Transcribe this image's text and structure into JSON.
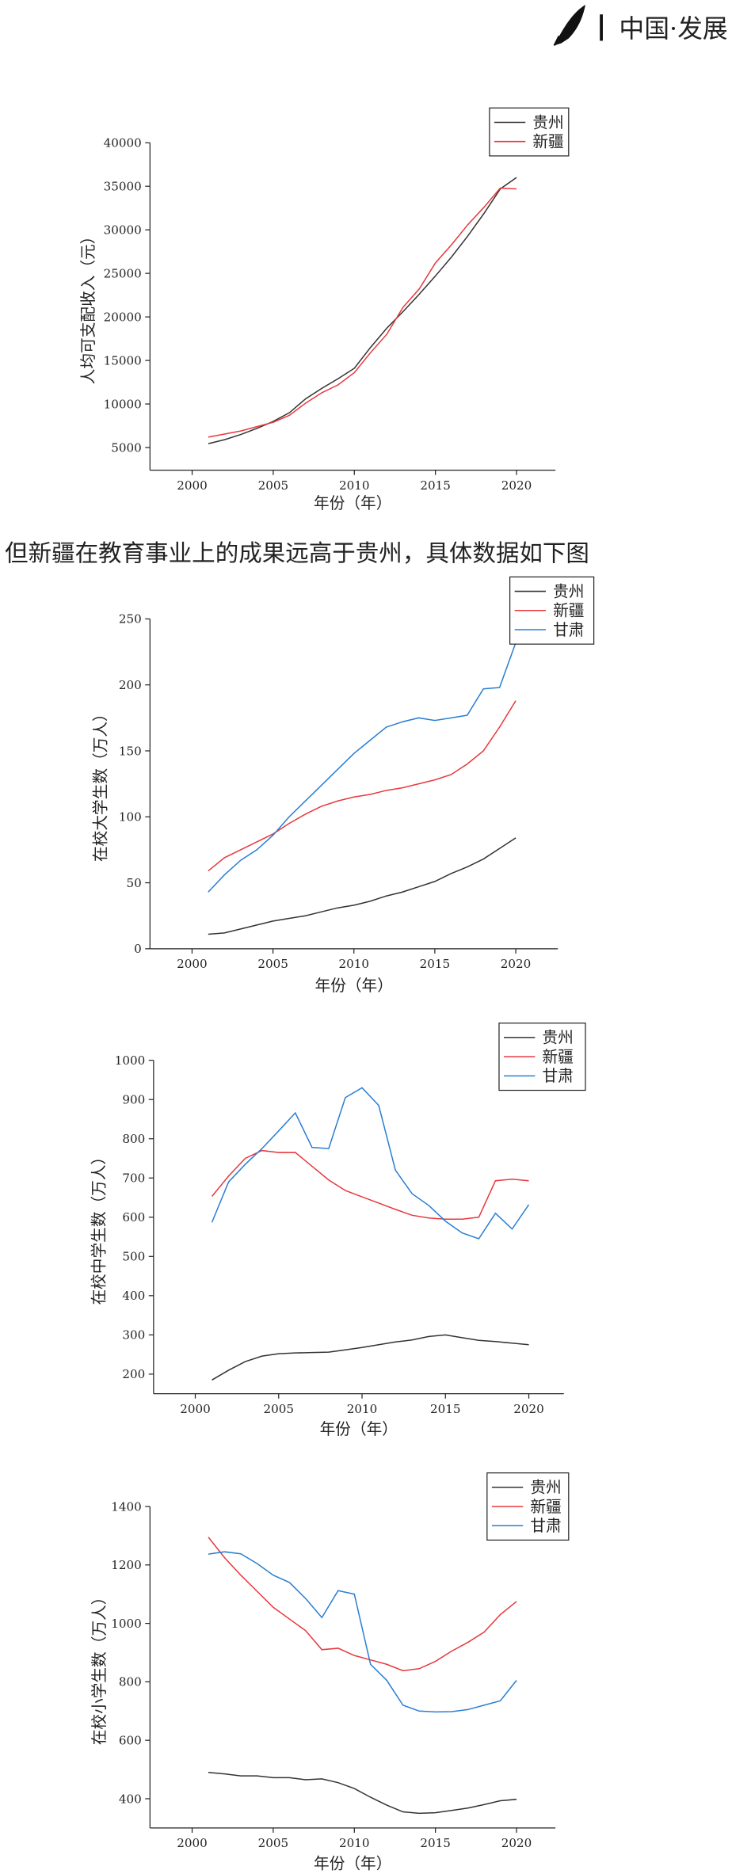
{
  "header": {
    "brand": "中国·发展"
  },
  "paragraph": "但新疆在教育事业上的成果远高于贵州，具体数据如下图",
  "chart_data": [
    {
      "type": "line",
      "xlabel": "年份（年）",
      "ylabel": "人均可支配收入（元）",
      "legend": "upper right",
      "x": [
        2001,
        2002,
        2003,
        2004,
        2005,
        2006,
        2007,
        2008,
        2009,
        2010,
        2011,
        2012,
        2013,
        2014,
        2015,
        2016,
        2017,
        2018,
        2019,
        2020
      ],
      "xlim": [
        1997.4,
        2022.4
      ],
      "xticks": [
        2000,
        2005,
        2010,
        2015,
        2020
      ],
      "ylim": [
        2400,
        40000
      ],
      "yticks": [
        5000,
        10000,
        15000,
        20000,
        25000,
        30000,
        35000,
        40000
      ],
      "series": [
        {
          "name": "贵州",
          "color": "#333333",
          "values": [
            5450,
            5900,
            6500,
            7200,
            8000,
            9000,
            10600,
            11800,
            12900,
            14100,
            16500,
            18700,
            20600,
            22600,
            24700,
            26900,
            29300,
            31900,
            34700,
            36000
          ]
        },
        {
          "name": "新疆",
          "color": "#e8383d",
          "values": [
            6200,
            6550,
            6900,
            7400,
            7900,
            8700,
            10100,
            11300,
            12200,
            13600,
            15900,
            18000,
            21100,
            23200,
            26200,
            28300,
            30600,
            32600,
            34800,
            34700
          ]
        }
      ]
    },
    {
      "type": "line",
      "xlabel": "年份（年）",
      "ylabel": "在校大学生数（万人）",
      "legend": "upper right",
      "x": [
        2001,
        2002,
        2003,
        2004,
        2005,
        2006,
        2007,
        2008,
        2009,
        2010,
        2011,
        2012,
        2013,
        2014,
        2015,
        2016,
        2017,
        2018,
        2019,
        2020
      ],
      "xlim": [
        1997.4,
        2022.6
      ],
      "xticks": [
        2000,
        2005,
        2010,
        2015,
        2020
      ],
      "ylim": [
        0,
        250
      ],
      "yticks": [
        0,
        50,
        100,
        150,
        200,
        250
      ],
      "series": [
        {
          "name": "贵州",
          "color": "#333333",
          "values": [
            11,
            12,
            15,
            18,
            21,
            23,
            25,
            28,
            31,
            33,
            36,
            40,
            43,
            47,
            51,
            57,
            62,
            68,
            76,
            84
          ]
        },
        {
          "name": "新疆",
          "color": "#e8383d",
          "values": [
            59,
            69,
            75,
            81,
            87,
            95,
            102,
            108,
            112,
            115,
            117,
            120,
            122,
            125,
            128,
            132,
            140,
            150,
            168,
            188
          ]
        },
        {
          "name": "甘肃",
          "color": "#2a7fd4",
          "values": [
            43,
            56,
            67,
            75,
            86,
            100,
            112,
            124,
            136,
            148,
            158,
            168,
            172,
            175,
            173,
            175,
            177,
            197,
            198,
            232
          ]
        }
      ]
    },
    {
      "type": "line",
      "xlabel": "年份（年）",
      "ylabel": "在校中学生数（万人）",
      "legend": "upper right",
      "x": [
        2001,
        2002,
        2003,
        2004,
        2005,
        2006,
        2007,
        2008,
        2009,
        2010,
        2011,
        2012,
        2013,
        2014,
        2015,
        2016,
        2017,
        2018,
        2019,
        2020
      ],
      "xlim": [
        1997.5,
        2022.1
      ],
      "xticks": [
        2000,
        2005,
        2010,
        2015,
        2020
      ],
      "ylim": [
        150,
        1000
      ],
      "yticks": [
        200,
        300,
        400,
        500,
        600,
        700,
        800,
        900,
        1000
      ],
      "series": [
        {
          "name": "贵州",
          "color": "#333333",
          "values": [
            185,
            210,
            232,
            246,
            252,
            254,
            255,
            256,
            262,
            268,
            275,
            282,
            287,
            296,
            300,
            293,
            286,
            283,
            279,
            275
          ]
        },
        {
          "name": "新疆",
          "color": "#e8383d",
          "values": [
            653,
            705,
            750,
            770,
            765,
            765,
            730,
            695,
            668,
            652,
            636,
            620,
            605,
            598,
            595,
            595,
            600,
            693,
            697,
            693
          ]
        },
        {
          "name": "甘肃",
          "color": "#2a7fd4",
          "values": [
            587,
            690,
            735,
            775,
            820,
            866,
            778,
            775,
            905,
            930,
            885,
            720,
            660,
            630,
            590,
            560,
            545,
            610,
            570,
            632
          ]
        }
      ]
    },
    {
      "type": "line",
      "xlabel": "年份（年）",
      "ylabel": "在校小学生数（万人）",
      "legend": "upper right",
      "x": [
        2001,
        2002,
        2003,
        2004,
        2005,
        2006,
        2007,
        2008,
        2009,
        2010,
        2011,
        2012,
        2013,
        2014,
        2015,
        2016,
        2017,
        2018,
        2019,
        2020
      ],
      "xlim": [
        1997.4,
        2022.4
      ],
      "xticks": [
        2000,
        2005,
        2010,
        2015,
        2020
      ],
      "ylim": [
        300,
        1400
      ],
      "yticks": [
        400,
        600,
        800,
        1000,
        1200,
        1400
      ],
      "series": [
        {
          "name": "贵州",
          "color": "#333333",
          "values": [
            490,
            485,
            478,
            478,
            472,
            472,
            465,
            468,
            455,
            435,
            405,
            378,
            355,
            350,
            352,
            360,
            368,
            380,
            393,
            398
          ]
        },
        {
          "name": "新疆",
          "color": "#e8383d",
          "values": [
            1295,
            1225,
            1165,
            1110,
            1055,
            1015,
            975,
            910,
            915,
            890,
            875,
            860,
            838,
            845,
            870,
            905,
            935,
            970,
            1030,
            1075
          ]
        },
        {
          "name": "甘肃",
          "color": "#2a7fd4",
          "values": [
            1237,
            1245,
            1238,
            1205,
            1165,
            1140,
            1085,
            1020,
            1112,
            1100,
            860,
            805,
            720,
            700,
            697,
            698,
            705,
            720,
            735,
            805
          ]
        }
      ]
    }
  ]
}
